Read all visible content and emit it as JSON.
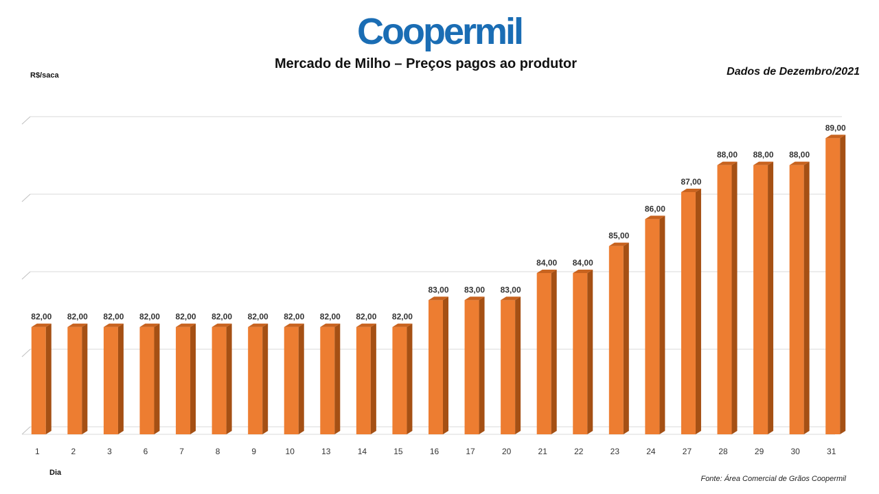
{
  "brand": {
    "logo_text": "Coopermil",
    "logo_color": "#1a6db4"
  },
  "header": {
    "title": "Mercado de Milho – Preços pagos ao produtor",
    "subtitle": "Dados de Dezembro/2021"
  },
  "footer": {
    "source": "Fonte: Área Comercial de Grãos Coopermil"
  },
  "chart_data": {
    "type": "bar",
    "xlabel": "Dia",
    "ylabel": "R$/saca",
    "categories": [
      "1",
      "2",
      "3",
      "6",
      "7",
      "8",
      "9",
      "10",
      "13",
      "14",
      "15",
      "16",
      "17",
      "20",
      "21",
      "22",
      "23",
      "24",
      "27",
      "28",
      "29",
      "30",
      "31"
    ],
    "values": [
      82,
      82,
      82,
      82,
      82,
      82,
      82,
      82,
      82,
      82,
      82,
      83,
      83,
      83,
      84,
      84,
      85,
      86,
      87,
      88,
      88,
      88,
      89
    ],
    "data_labels": [
      "82,00",
      "82,00",
      "82,00",
      "82,00",
      "82,00",
      "82,00",
      "82,00",
      "82,00",
      "82,00",
      "82,00",
      "82,00",
      "83,00",
      "83,00",
      "83,00",
      "84,00",
      "84,00",
      "85,00",
      "86,00",
      "87,00",
      "88,00",
      "88,00",
      "88,00",
      "89,00"
    ],
    "ylim": [
      0,
      100
    ],
    "grid": true,
    "bar_color": "#ed7d31",
    "bar_side_color": "#a55014",
    "bar_top_color": "#c8631f"
  }
}
